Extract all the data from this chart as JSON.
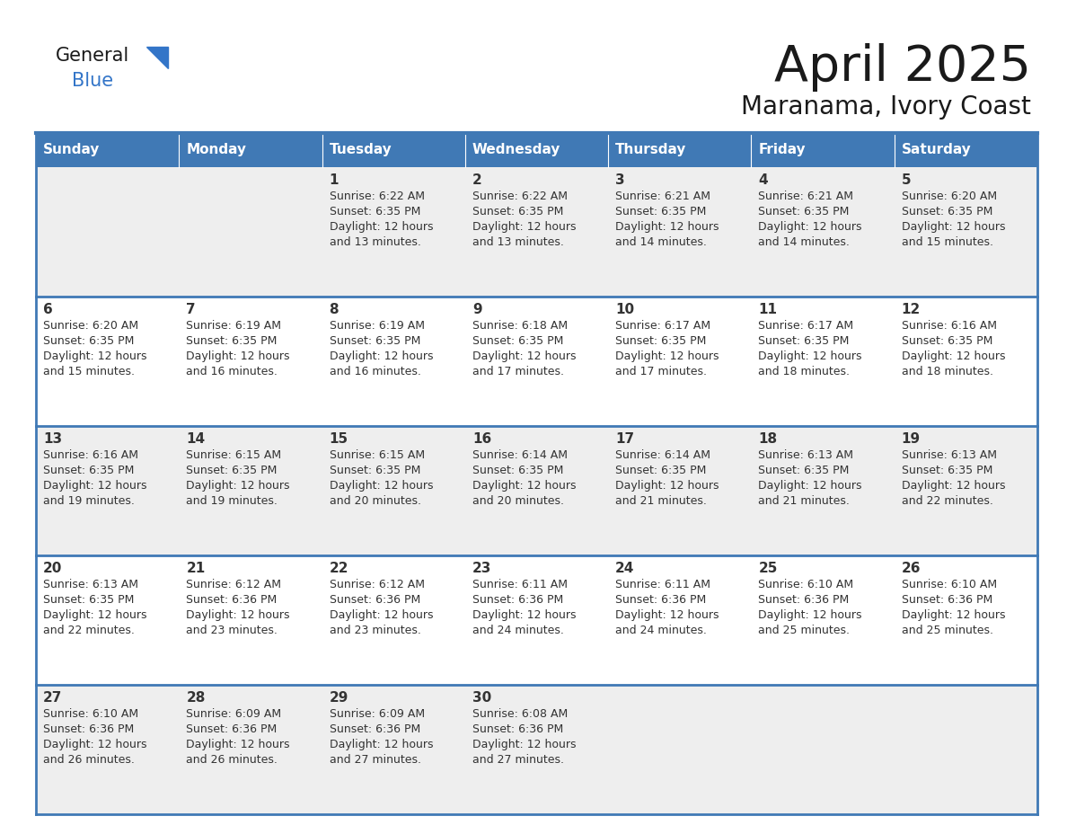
{
  "title": "April 2025",
  "subtitle": "Maranama, Ivory Coast",
  "days_of_week": [
    "Sunday",
    "Monday",
    "Tuesday",
    "Wednesday",
    "Thursday",
    "Friday",
    "Saturday"
  ],
  "header_bg": "#4079B5",
  "header_text": "#FFFFFF",
  "border_color": "#4079B5",
  "text_color": "#333333",
  "row_bg_odd": "#EEEEEE",
  "row_bg_even": "#FFFFFF",
  "calendar_data": [
    [
      {
        "day": "",
        "lines": []
      },
      {
        "day": "",
        "lines": []
      },
      {
        "day": "1",
        "lines": [
          "Sunrise: 6:22 AM",
          "Sunset: 6:35 PM",
          "Daylight: 12 hours",
          "and 13 minutes."
        ]
      },
      {
        "day": "2",
        "lines": [
          "Sunrise: 6:22 AM",
          "Sunset: 6:35 PM",
          "Daylight: 12 hours",
          "and 13 minutes."
        ]
      },
      {
        "day": "3",
        "lines": [
          "Sunrise: 6:21 AM",
          "Sunset: 6:35 PM",
          "Daylight: 12 hours",
          "and 14 minutes."
        ]
      },
      {
        "day": "4",
        "lines": [
          "Sunrise: 6:21 AM",
          "Sunset: 6:35 PM",
          "Daylight: 12 hours",
          "and 14 minutes."
        ]
      },
      {
        "day": "5",
        "lines": [
          "Sunrise: 6:20 AM",
          "Sunset: 6:35 PM",
          "Daylight: 12 hours",
          "and 15 minutes."
        ]
      }
    ],
    [
      {
        "day": "6",
        "lines": [
          "Sunrise: 6:20 AM",
          "Sunset: 6:35 PM",
          "Daylight: 12 hours",
          "and 15 minutes."
        ]
      },
      {
        "day": "7",
        "lines": [
          "Sunrise: 6:19 AM",
          "Sunset: 6:35 PM",
          "Daylight: 12 hours",
          "and 16 minutes."
        ]
      },
      {
        "day": "8",
        "lines": [
          "Sunrise: 6:19 AM",
          "Sunset: 6:35 PM",
          "Daylight: 12 hours",
          "and 16 minutes."
        ]
      },
      {
        "day": "9",
        "lines": [
          "Sunrise: 6:18 AM",
          "Sunset: 6:35 PM",
          "Daylight: 12 hours",
          "and 17 minutes."
        ]
      },
      {
        "day": "10",
        "lines": [
          "Sunrise: 6:17 AM",
          "Sunset: 6:35 PM",
          "Daylight: 12 hours",
          "and 17 minutes."
        ]
      },
      {
        "day": "11",
        "lines": [
          "Sunrise: 6:17 AM",
          "Sunset: 6:35 PM",
          "Daylight: 12 hours",
          "and 18 minutes."
        ]
      },
      {
        "day": "12",
        "lines": [
          "Sunrise: 6:16 AM",
          "Sunset: 6:35 PM",
          "Daylight: 12 hours",
          "and 18 minutes."
        ]
      }
    ],
    [
      {
        "day": "13",
        "lines": [
          "Sunrise: 6:16 AM",
          "Sunset: 6:35 PM",
          "Daylight: 12 hours",
          "and 19 minutes."
        ]
      },
      {
        "day": "14",
        "lines": [
          "Sunrise: 6:15 AM",
          "Sunset: 6:35 PM",
          "Daylight: 12 hours",
          "and 19 minutes."
        ]
      },
      {
        "day": "15",
        "lines": [
          "Sunrise: 6:15 AM",
          "Sunset: 6:35 PM",
          "Daylight: 12 hours",
          "and 20 minutes."
        ]
      },
      {
        "day": "16",
        "lines": [
          "Sunrise: 6:14 AM",
          "Sunset: 6:35 PM",
          "Daylight: 12 hours",
          "and 20 minutes."
        ]
      },
      {
        "day": "17",
        "lines": [
          "Sunrise: 6:14 AM",
          "Sunset: 6:35 PM",
          "Daylight: 12 hours",
          "and 21 minutes."
        ]
      },
      {
        "day": "18",
        "lines": [
          "Sunrise: 6:13 AM",
          "Sunset: 6:35 PM",
          "Daylight: 12 hours",
          "and 21 minutes."
        ]
      },
      {
        "day": "19",
        "lines": [
          "Sunrise: 6:13 AM",
          "Sunset: 6:35 PM",
          "Daylight: 12 hours",
          "and 22 minutes."
        ]
      }
    ],
    [
      {
        "day": "20",
        "lines": [
          "Sunrise: 6:13 AM",
          "Sunset: 6:35 PM",
          "Daylight: 12 hours",
          "and 22 minutes."
        ]
      },
      {
        "day": "21",
        "lines": [
          "Sunrise: 6:12 AM",
          "Sunset: 6:36 PM",
          "Daylight: 12 hours",
          "and 23 minutes."
        ]
      },
      {
        "day": "22",
        "lines": [
          "Sunrise: 6:12 AM",
          "Sunset: 6:36 PM",
          "Daylight: 12 hours",
          "and 23 minutes."
        ]
      },
      {
        "day": "23",
        "lines": [
          "Sunrise: 6:11 AM",
          "Sunset: 6:36 PM",
          "Daylight: 12 hours",
          "and 24 minutes."
        ]
      },
      {
        "day": "24",
        "lines": [
          "Sunrise: 6:11 AM",
          "Sunset: 6:36 PM",
          "Daylight: 12 hours",
          "and 24 minutes."
        ]
      },
      {
        "day": "25",
        "lines": [
          "Sunrise: 6:10 AM",
          "Sunset: 6:36 PM",
          "Daylight: 12 hours",
          "and 25 minutes."
        ]
      },
      {
        "day": "26",
        "lines": [
          "Sunrise: 6:10 AM",
          "Sunset: 6:36 PM",
          "Daylight: 12 hours",
          "and 25 minutes."
        ]
      }
    ],
    [
      {
        "day": "27",
        "lines": [
          "Sunrise: 6:10 AM",
          "Sunset: 6:36 PM",
          "Daylight: 12 hours",
          "and 26 minutes."
        ]
      },
      {
        "day": "28",
        "lines": [
          "Sunrise: 6:09 AM",
          "Sunset: 6:36 PM",
          "Daylight: 12 hours",
          "and 26 minutes."
        ]
      },
      {
        "day": "29",
        "lines": [
          "Sunrise: 6:09 AM",
          "Sunset: 6:36 PM",
          "Daylight: 12 hours",
          "and 27 minutes."
        ]
      },
      {
        "day": "30",
        "lines": [
          "Sunrise: 6:08 AM",
          "Sunset: 6:36 PM",
          "Daylight: 12 hours",
          "and 27 minutes."
        ]
      },
      {
        "day": "",
        "lines": []
      },
      {
        "day": "",
        "lines": []
      },
      {
        "day": "",
        "lines": []
      }
    ]
  ]
}
